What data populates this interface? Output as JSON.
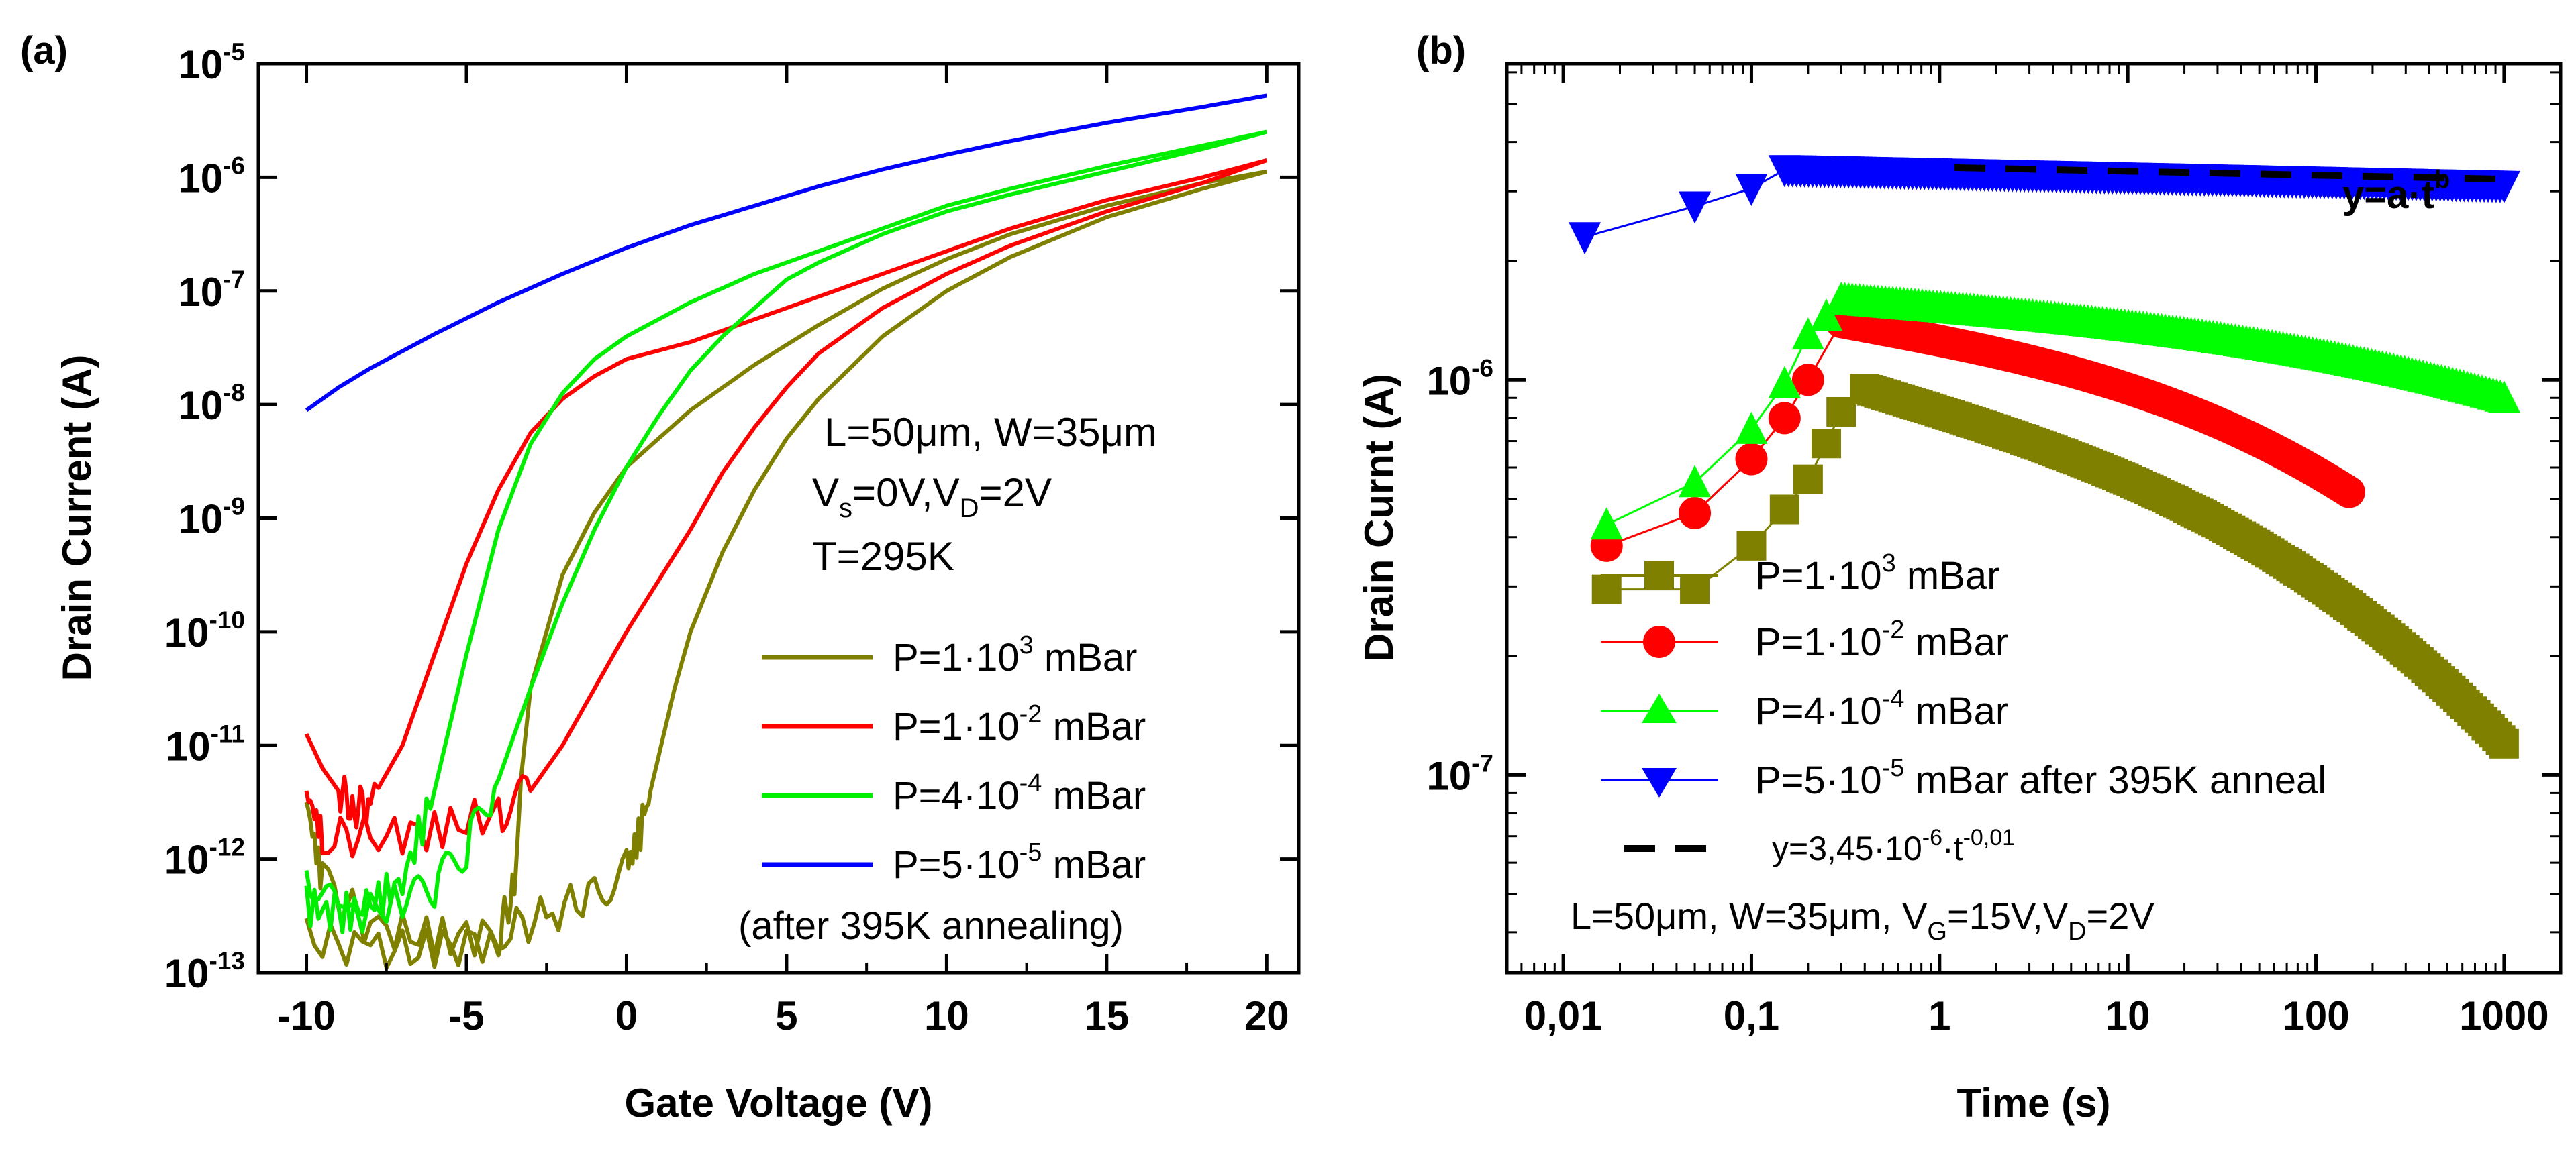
{
  "chart_data": [
    {
      "type": "line",
      "panel_label": "(a)",
      "xlabel": "Gate Voltage (V)",
      "ylabel": "Drain Current (A)",
      "xlim": [
        -11.5,
        21
      ],
      "ylim_log10": [
        -13,
        -5
      ],
      "yscale": "log",
      "x_ticks": [
        -10,
        -5,
        0,
        5,
        10,
        15,
        20
      ],
      "x_tick_labels": [
        "-10",
        "-5",
        "0",
        "5",
        "10",
        "15",
        "20"
      ],
      "y_ticks_exp": [
        -13,
        -12,
        -11,
        -10,
        -9,
        -8,
        -7,
        -6,
        -5
      ],
      "y_tick_mantissa": "10",
      "annotation": {
        "line1": "L=50μm, W=35μm",
        "line2_pre": "V",
        "line2_sub1": "s",
        "line2_mid": "=0V,V",
        "line2_sub2": "D",
        "line2_post": "=2V",
        "line3": "T=295K"
      },
      "legend_extra": "(after 395K annealing)",
      "series": [
        {
          "name": "P=1·10^3 mBar",
          "label_pre": "P=1·10",
          "label_exp": "3",
          "label_post": " mBar",
          "color": "#808000",
          "forward": [
            [
              -10,
              -11.5
            ],
            [
              -9.5,
              -12.2
            ],
            [
              -8,
              -12.6
            ],
            [
              -6,
              -12.7
            ],
            [
              -4,
              -12.65
            ],
            [
              -2.5,
              -12.5
            ],
            [
              -1,
              -12.3
            ],
            [
              0,
              -12.1
            ],
            [
              0.5,
              -11.7
            ],
            [
              1,
              -11.1
            ],
            [
              1.5,
              -10.5
            ],
            [
              2,
              -10.0
            ],
            [
              3,
              -9.3
            ],
            [
              4,
              -8.75
            ],
            [
              5,
              -8.3
            ],
            [
              6,
              -7.95
            ],
            [
              8,
              -7.4
            ],
            [
              10,
              -7.0
            ],
            [
              12,
              -6.7
            ],
            [
              15,
              -6.35
            ],
            [
              18,
              -6.1
            ],
            [
              20,
              -5.95
            ]
          ],
          "reverse": [
            [
              20,
              -5.95
            ],
            [
              18,
              -6.05
            ],
            [
              15,
              -6.25
            ],
            [
              12,
              -6.5
            ],
            [
              10,
              -6.72
            ],
            [
              8,
              -6.98
            ],
            [
              6,
              -7.3
            ],
            [
              4,
              -7.65
            ],
            [
              2,
              -8.05
            ],
            [
              0,
              -8.55
            ],
            [
              -1,
              -8.95
            ],
            [
              -2,
              -9.5
            ],
            [
              -3,
              -10.5
            ],
            [
              -3.3,
              -11.3
            ],
            [
              -3.5,
              -12.2
            ],
            [
              -4,
              -12.7
            ],
            [
              -6,
              -12.8
            ],
            [
              -8,
              -12.8
            ],
            [
              -10,
              -12.7
            ]
          ]
        },
        {
          "name": "P=1·10^-2 mBar",
          "label_pre": "P=1·10",
          "label_exp": "-2",
          "label_post": " mBar",
          "color": "#ff0000",
          "forward": [
            [
              -10,
              -11.4
            ],
            [
              -9.5,
              -11.8
            ],
            [
              -8,
              -11.8
            ],
            [
              -6,
              -11.75
            ],
            [
              -4,
              -11.6
            ],
            [
              -3,
              -11.4
            ],
            [
              -2,
              -11.0
            ],
            [
              -1,
              -10.5
            ],
            [
              0,
              -10.0
            ],
            [
              1,
              -9.55
            ],
            [
              2,
              -9.1
            ],
            [
              3,
              -8.6
            ],
            [
              4,
              -8.2
            ],
            [
              5,
              -7.85
            ],
            [
              6,
              -7.55
            ],
            [
              8,
              -7.15
            ],
            [
              10,
              -6.85
            ],
            [
              12,
              -6.6
            ],
            [
              15,
              -6.3
            ],
            [
              18,
              -6.05
            ],
            [
              20,
              -5.85
            ]
          ],
          "reverse": [
            [
              20,
              -5.85
            ],
            [
              18,
              -6.0
            ],
            [
              15,
              -6.2
            ],
            [
              12,
              -6.45
            ],
            [
              10,
              -6.65
            ],
            [
              8,
              -6.85
            ],
            [
              6,
              -7.05
            ],
            [
              4,
              -7.25
            ],
            [
              2,
              -7.45
            ],
            [
              0,
              -7.6
            ],
            [
              -1,
              -7.75
            ],
            [
              -2,
              -7.95
            ],
            [
              -3,
              -8.25
            ],
            [
              -4,
              -8.75
            ],
            [
              -5,
              -9.4
            ],
            [
              -6,
              -10.2
            ],
            [
              -7,
              -11.0
            ],
            [
              -8,
              -11.5
            ],
            [
              -8.5,
              -11.55
            ],
            [
              -9,
              -11.4
            ],
            [
              -9.5,
              -11.2
            ],
            [
              -10,
              -10.9
            ]
          ]
        },
        {
          "name": "P=4·10^-4 mBar",
          "label_pre": "P=4·10",
          "label_exp": "-4",
          "label_post": " mBar",
          "color": "#00ee00",
          "forward": [
            [
              -10,
              -12.1
            ],
            [
              -9,
              -12.5
            ],
            [
              -7,
              -12.4
            ],
            [
              -6,
              -12.25
            ],
            [
              -5,
              -11.9
            ],
            [
              -4,
              -11.3
            ],
            [
              -3,
              -10.5
            ],
            [
              -2,
              -9.75
            ],
            [
              -1,
              -9.1
            ],
            [
              0,
              -8.55
            ],
            [
              1,
              -8.1
            ],
            [
              2,
              -7.7
            ],
            [
              3,
              -7.4
            ],
            [
              4,
              -7.15
            ],
            [
              5,
              -6.9
            ],
            [
              6,
              -6.75
            ],
            [
              8,
              -6.5
            ],
            [
              10,
              -6.3
            ],
            [
              12,
              -6.15
            ],
            [
              15,
              -5.95
            ],
            [
              18,
              -5.75
            ],
            [
              20,
              -5.6
            ]
          ],
          "reverse": [
            [
              20,
              -5.6
            ],
            [
              18,
              -5.72
            ],
            [
              15,
              -5.9
            ],
            [
              12,
              -6.1
            ],
            [
              10,
              -6.25
            ],
            [
              8,
              -6.45
            ],
            [
              6,
              -6.65
            ],
            [
              4,
              -6.85
            ],
            [
              2,
              -7.1
            ],
            [
              0,
              -7.4
            ],
            [
              -1,
              -7.6
            ],
            [
              -2,
              -7.9
            ],
            [
              -3,
              -8.35
            ],
            [
              -4,
              -9.1
            ],
            [
              -5,
              -10.2
            ],
            [
              -6,
              -11.4
            ],
            [
              -7,
              -12.2
            ],
            [
              -8,
              -12.4
            ],
            [
              -9,
              -12.5
            ],
            [
              -10,
              -12.4
            ]
          ]
        },
        {
          "name": "P=5·10^-5 mBar",
          "label_pre": "P=5·10",
          "label_exp": "-5",
          "label_post": " mBar",
          "color": "#0000ff",
          "forward": [
            [
              -10,
              -8.05
            ],
            [
              -9,
              -7.85
            ],
            [
              -8,
              -7.68
            ],
            [
              -6,
              -7.38
            ],
            [
              -4,
              -7.1
            ],
            [
              -2,
              -6.85
            ],
            [
              0,
              -6.62
            ],
            [
              2,
              -6.42
            ],
            [
              4,
              -6.25
            ],
            [
              6,
              -6.08
            ],
            [
              8,
              -5.93
            ],
            [
              10,
              -5.8
            ],
            [
              12,
              -5.68
            ],
            [
              15,
              -5.52
            ],
            [
              18,
              -5.38
            ],
            [
              20,
              -5.28
            ]
          ],
          "reverse": []
        }
      ]
    },
    {
      "type": "scatter",
      "panel_label": "(b)",
      "xlabel": "Time (s)",
      "ylabel": "Drain Curnt (A)",
      "xscale": "log",
      "yscale": "log",
      "xlim_log10": [
        -2.3,
        3.3
      ],
      "ylim_log10": [
        -7.5,
        -5.2
      ],
      "x_ticks_log10": [
        -2,
        -1,
        0,
        1,
        2,
        3
      ],
      "x_tick_labels": [
        "0,01",
        "0,1",
        "1",
        "10",
        "100",
        "1000"
      ],
      "y_ticks_exp": [
        -7,
        -6
      ],
      "y_tick_mantissa": "10",
      "fit_label_pre": "y=a·t",
      "fit_label_exp": "b",
      "conditions": {
        "pre": "L=50μm, W=35μm, V",
        "sub1": "G",
        "mid": "=15V,V",
        "sub2": "D",
        "post": "=2V"
      },
      "series": [
        {
          "name": "P=1·10^3 mBar",
          "label_pre": "P=1·10",
          "label_exp": "3",
          "label_post": " mBar",
          "color": "#808000",
          "marker": "square",
          "points": [
            [
              0.017,
              2.95e-07
            ],
            [
              0.05,
              2.95e-07
            ],
            [
              0.1,
              3.8e-07
            ],
            [
              0.15,
              4.7e-07
            ],
            [
              0.2,
              5.6e-07
            ],
            [
              0.25,
              6.9e-07
            ],
            [
              0.3,
              8.3e-07
            ],
            [
              0.4,
              9.5e-07
            ]
          ],
          "decay": {
            "t_start": 0.4,
            "i_start": 9.5e-07,
            "t_end": 1000,
            "i_end": 1.2e-07,
            "shape": "accelerating"
          }
        },
        {
          "name": "P=1·10^-2 mBar",
          "label_pre": "P=1·10",
          "label_exp": "-2",
          "label_post": " mBar",
          "color": "#ff0000",
          "marker": "circle",
          "points": [
            [
              0.017,
              3.8e-07
            ],
            [
              0.05,
              4.6e-07
            ],
            [
              0.1,
              6.3e-07
            ],
            [
              0.15,
              8e-07
            ],
            [
              0.2,
              1e-06
            ],
            [
              0.3,
              1.4e-06
            ]
          ],
          "decay": {
            "t_start": 0.3,
            "i_start": 1.4e-06,
            "t_end": 150,
            "i_end": 5.2e-07,
            "shape": "accelerating"
          }
        },
        {
          "name": "P=4·10^-4 mBar",
          "label_pre": "P=4·10",
          "label_exp": "-4",
          "label_post": " mBar",
          "color": "#00ff00",
          "marker": "triangle-up",
          "points": [
            [
              0.017,
              4.3e-07
            ],
            [
              0.05,
              5.5e-07
            ],
            [
              0.1,
              7.5e-07
            ],
            [
              0.15,
              9.8e-07
            ],
            [
              0.2,
              1.3e-06
            ],
            [
              0.25,
              1.45e-06
            ],
            [
              0.3,
              1.6e-06
            ]
          ],
          "decay": {
            "t_start": 0.3,
            "i_start": 1.6e-06,
            "t_end": 1000,
            "i_end": 9e-07,
            "shape": "accelerating"
          }
        },
        {
          "name": "P=5·10^-5 mBar after 395K anneal",
          "label_pre": "P=5·10",
          "label_exp": "-5",
          "label_post": " mBar after 395K anneal",
          "color": "#0000ff",
          "marker": "triangle-down",
          "points": [
            [
              0.013,
              2.3e-06
            ],
            [
              0.05,
              2.75e-06
            ],
            [
              0.1,
              3.05e-06
            ],
            [
              0.15,
              3.4e-06
            ]
          ],
          "decay": {
            "t_start": 0.15,
            "i_start": 3.4e-06,
            "t_end": 1000,
            "i_end": 3.1e-06,
            "shape": "power"
          }
        },
        {
          "name": "y=3,45·10^-6·t^-0,01",
          "label_pre": "y=3,45·10",
          "label_exp1": "-6",
          "label_mid": "·t",
          "label_exp2": "-0,01",
          "color": "#000000",
          "marker": "none",
          "style": "dashed",
          "fit": {
            "a": 3.45e-06,
            "b": -0.01,
            "t_min": 0.15,
            "t_max": 1000
          }
        }
      ]
    }
  ]
}
